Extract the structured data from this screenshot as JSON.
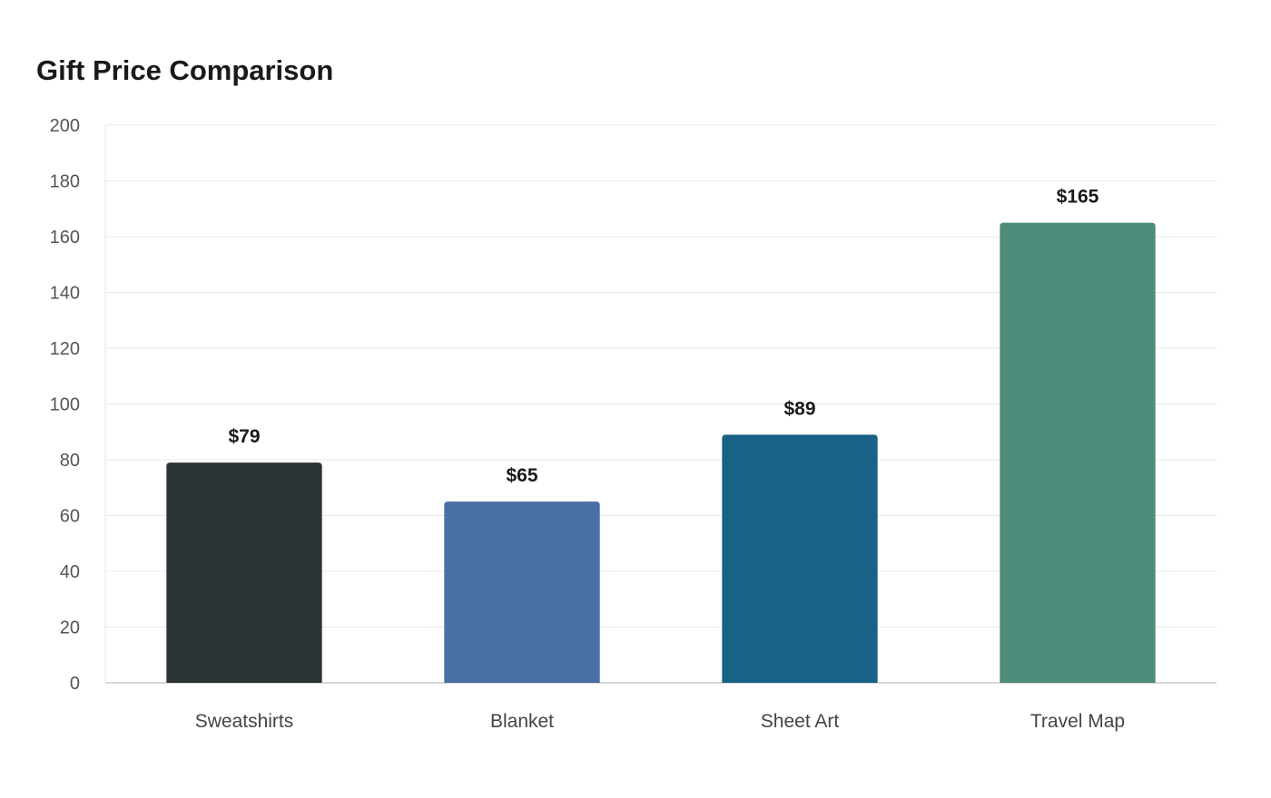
{
  "chart_data": {
    "type": "bar",
    "title": "Gift Price Comparison",
    "xlabel": "",
    "ylabel": "",
    "categories": [
      "Sweatshirts",
      "Blanket",
      "Sheet Art",
      "Travel Map"
    ],
    "values": [
      79,
      65,
      89,
      165
    ],
    "value_labels": [
      "$79",
      "$65",
      "$89",
      "$165"
    ],
    "colors": [
      "#2d3436",
      "#4a6fa5",
      "#186287",
      "#4d8b7a"
    ],
    "ylim": [
      0,
      200
    ],
    "yticks": [
      0,
      20,
      40,
      60,
      80,
      100,
      120,
      140,
      160,
      180,
      200
    ],
    "grid": true,
    "legend": "none"
  }
}
